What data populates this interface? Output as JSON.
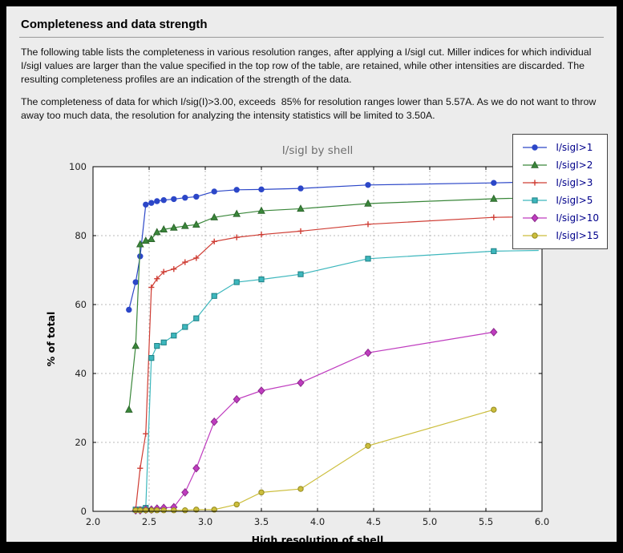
{
  "page": {
    "title": "Completeness and data strength",
    "paragraphs": {
      "p1": "The following table lists the completeness in various resolution ranges, after applying a I/sigI cut. Miller indices for which individual I/sigI values are larger than the value specified in the top row of the table, are retained, while other intensities are discarded. The resulting completeness profiles are an indication of the strength of the data.",
      "p2": "The completeness of data for which I/sig(I)>3.00, exceeds  85% for resolution ranges lower than 5.57A. As we do not want to throw away too much data, the resolution for analyzing the intensity statistics will be limited to 3.50A."
    }
  },
  "chart_data": {
    "type": "line",
    "title": "I/sigI by shell",
    "xlabel": "High resolution of shell",
    "ylabel": "% of total",
    "xlim": [
      2.0,
      6.0
    ],
    "ylim": [
      0,
      100
    ],
    "xticks": [
      2.0,
      2.5,
      3.0,
      3.5,
      4.0,
      4.5,
      5.0,
      5.5,
      6.0
    ],
    "xtick_labels": [
      "2.0",
      "2.5",
      "3.0",
      "3.5",
      "4.0",
      "4.5",
      "5.0",
      "5.5",
      "6.0"
    ],
    "yticks": [
      0,
      20,
      40,
      60,
      80,
      100
    ],
    "ytick_labels": [
      "0",
      "20",
      "40",
      "60",
      "80",
      "100"
    ],
    "grid": true,
    "legend_position": "upper right",
    "legend_text_color": "#00008b",
    "grid_color": "#b8b8b8",
    "plot_bg": "#ffffff",
    "figure_bg": "#ececec",
    "title_color": "#6e6e6e",
    "x": [
      2.32,
      2.38,
      2.42,
      2.47,
      2.52,
      2.57,
      2.63,
      2.72,
      2.82,
      2.92,
      3.08,
      3.28,
      3.5,
      3.85,
      4.45,
      5.57
    ],
    "series": [
      {
        "name": "I/sigI>1",
        "color": "#2c47c8",
        "edge": "#2c47c8",
        "marker": "circle",
        "values": [
          58.5,
          66.5,
          74.0,
          89.0,
          89.5,
          90.0,
          90.3,
          90.6,
          91.0,
          91.3,
          92.8,
          93.3,
          93.4,
          93.7,
          94.7,
          95.3
        ],
        "tail": [
          5.97,
          95.6
        ]
      },
      {
        "name": "I/sigI>2",
        "color": "#3a873a",
        "edge": "#2d662d",
        "marker": "triangle",
        "values": [
          29.5,
          48.0,
          77.5,
          78.5,
          79.0,
          81.0,
          81.8,
          82.3,
          82.8,
          83.2,
          85.3,
          86.3,
          87.2,
          87.8,
          89.3,
          90.7
        ],
        "tail": [
          5.97,
          91.0
        ]
      },
      {
        "name": "I/sigI>3",
        "color": "#cf3d34",
        "edge": "#cf3d34",
        "marker": "plus",
        "values": [
          null,
          0.5,
          12.5,
          22.5,
          65.0,
          67.5,
          69.5,
          70.3,
          72.3,
          73.5,
          78.3,
          79.5,
          80.3,
          81.3,
          83.3,
          85.3
        ],
        "tail": [
          5.97,
          85.5
        ]
      },
      {
        "name": "I/sigI>5",
        "color": "#3db7bd",
        "edge": "#1d7f84",
        "marker": "square",
        "values": [
          null,
          0.5,
          0.5,
          1.0,
          44.5,
          48.0,
          49.0,
          51.0,
          53.5,
          56.0,
          62.5,
          66.5,
          67.3,
          68.8,
          73.3,
          75.5
        ],
        "tail": [
          5.97,
          75.7
        ]
      },
      {
        "name": "I/sigI>10",
        "color": "#bf3cbf",
        "edge": "#8c2a8c",
        "marker": "diamond",
        "values": [
          null,
          0.3,
          0.3,
          0.5,
          0.5,
          0.8,
          1.0,
          1.2,
          5.5,
          12.5,
          26.0,
          32.5,
          35.0,
          37.3,
          46.0,
          52.0
        ],
        "tail": null
      },
      {
        "name": "I/sigI>15",
        "color": "#ccbe3c",
        "edge": "#948a20",
        "marker": "circle",
        "values": [
          null,
          0.3,
          0.3,
          0.3,
          0.3,
          0.3,
          0.3,
          0.3,
          0.3,
          0.5,
          0.5,
          2.0,
          5.5,
          6.5,
          19.0,
          29.5
        ],
        "tail": null
      }
    ]
  }
}
